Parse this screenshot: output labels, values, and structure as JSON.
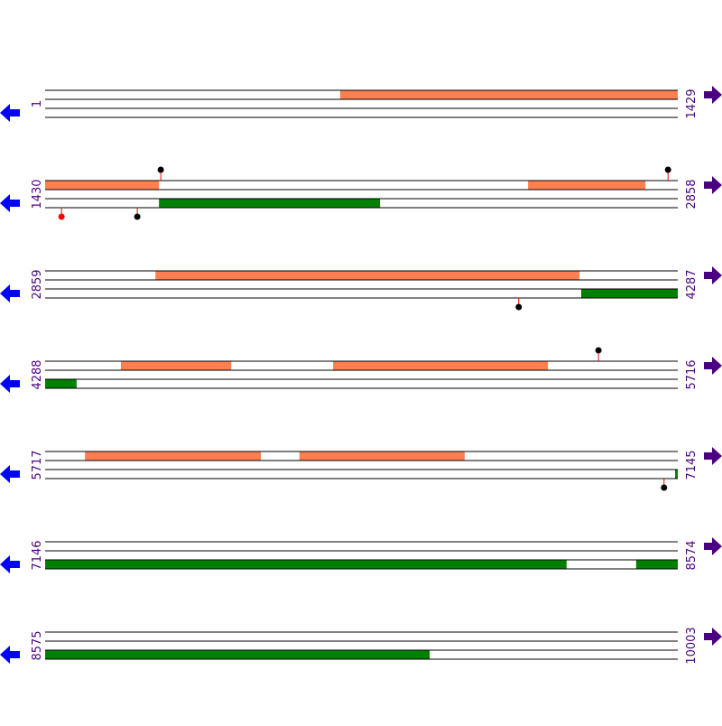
{
  "colors": {
    "top": "#ff7f50",
    "bottom": "#008000"
  },
  "rows": [
    {
      "start": 1,
      "end": 1429,
      "features": [
        {
          "track": "top",
          "start": 667,
          "end": 1429
        }
      ],
      "markers": []
    },
    {
      "start": 1430,
      "end": 2858,
      "features": [
        {
          "track": "top",
          "start": 1430,
          "end": 1687
        },
        {
          "track": "top",
          "start": 2520,
          "end": 2785
        },
        {
          "track": "bottom",
          "start": 1687,
          "end": 2186
        }
      ],
      "markers": [
        {
          "side": "top",
          "position": 1691,
          "color": "#000000"
        },
        {
          "side": "top",
          "position": 2836,
          "color": "#000000"
        },
        {
          "side": "bottom",
          "position": 1467,
          "color": "#ff0000"
        },
        {
          "side": "bottom",
          "position": 1638,
          "color": "#000000"
        }
      ]
    },
    {
      "start": 2859,
      "end": 4287,
      "features": [
        {
          "track": "top",
          "start": 3108,
          "end": 4065
        },
        {
          "track": "bottom",
          "start": 4069,
          "end": 4287
        }
      ],
      "markers": [
        {
          "side": "bottom",
          "position": 3928,
          "color": "#000000"
        }
      ]
    },
    {
      "start": 4288,
      "end": 5716,
      "features": [
        {
          "track": "top",
          "start": 4459,
          "end": 4708
        },
        {
          "track": "top",
          "start": 4938,
          "end": 5423
        },
        {
          "track": "bottom",
          "start": 4288,
          "end": 4359
        }
      ],
      "markers": [
        {
          "side": "top",
          "position": 5537,
          "color": "#000000"
        }
      ]
    },
    {
      "start": 5717,
      "end": 7145,
      "features": [
        {
          "track": "top",
          "start": 5807,
          "end": 6204
        },
        {
          "track": "top",
          "start": 6291,
          "end": 6664
        },
        {
          "track": "bottom",
          "start": 7139,
          "end": 7145
        }
      ],
      "markers": [
        {
          "side": "bottom",
          "position": 7114,
          "color": "#000000"
        }
      ]
    },
    {
      "start": 7146,
      "end": 8574,
      "features": [
        {
          "track": "bottom",
          "start": 7146,
          "end": 8323
        },
        {
          "track": "bottom",
          "start": 8480,
          "end": 8574
        }
      ],
      "markers": []
    },
    {
      "start": 8575,
      "end": 10003,
      "features": [
        {
          "track": "bottom",
          "start": 8575,
          "end": 9443
        }
      ],
      "markers": []
    }
  ]
}
